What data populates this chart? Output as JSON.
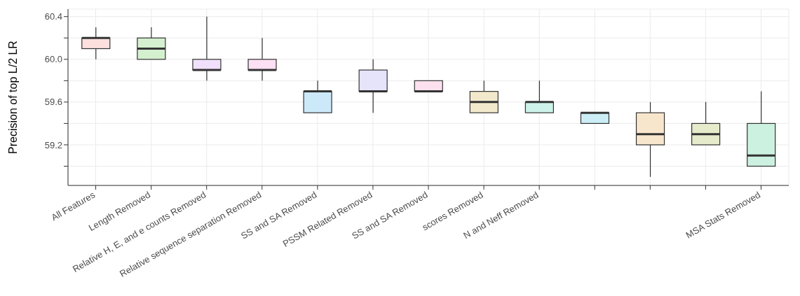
{
  "chart_data": {
    "type": "box",
    "ylabel": "Precision of top L/2 LR",
    "categories": [
      "All Features",
      "Length Removed",
      "Relative H, E, and e counts Removed",
      "Relative sequence separation Removed",
      "SS and SA Removed",
      "PSSM Related Removed",
      "SS and SA Removed",
      "scores Removed",
      "N and Neff Removed",
      null,
      null,
      null,
      "MSA Stats Removed"
    ],
    "boxes": [
      {
        "low": 60.0,
        "q1": 60.1,
        "median": 60.2,
        "q3": 60.2,
        "high": 60.3
      },
      {
        "low": 60.0,
        "q1": 60.0,
        "median": 60.1,
        "q3": 60.2,
        "high": 60.3
      },
      {
        "low": 59.8,
        "q1": 59.9,
        "median": 59.9,
        "q3": 60.0,
        "high": 60.4
      },
      {
        "low": 59.8,
        "q1": 59.9,
        "median": 59.9,
        "q3": 60.0,
        "high": 60.2
      },
      {
        "low": 59.5,
        "q1": 59.5,
        "median": 59.7,
        "q3": 59.7,
        "high": 59.8
      },
      {
        "low": 59.5,
        "q1": 59.7,
        "median": 59.7,
        "q3": 59.9,
        "high": 60.0
      },
      {
        "low": 59.7,
        "q1": 59.7,
        "median": 59.7,
        "q3": 59.8,
        "high": 59.8
      },
      {
        "low": 59.5,
        "q1": 59.5,
        "median": 59.6,
        "q3": 59.7,
        "high": 59.8
      },
      {
        "low": 59.5,
        "q1": 59.5,
        "median": 59.6,
        "q3": 59.6,
        "high": 59.8
      },
      {
        "low": 59.4,
        "q1": 59.4,
        "median": 59.5,
        "q3": 59.5,
        "high": 59.5
      },
      {
        "low": 58.9,
        "q1": 59.2,
        "median": 59.3,
        "q3": 59.5,
        "high": 59.6
      },
      {
        "low": 59.2,
        "q1": 59.2,
        "median": 59.3,
        "q3": 59.4,
        "high": 59.6
      },
      {
        "low": 59.0,
        "q1": 59.0,
        "median": 59.1,
        "q3": 59.4,
        "high": 59.7
      }
    ],
    "colors": [
      "#fde0dd",
      "#d4f0cf",
      "#f0e0fb",
      "#fde0f3",
      "#cce9fa",
      "#e5e4fb",
      "#fde0ee",
      "#f2e9cc",
      "#cdf2ea",
      "#ccedf5",
      "#f8e6cc",
      "#e6ebcc",
      "#ccf1e0"
    ],
    "ylim": [
      58.82,
      60.47
    ],
    "yticks": [
      59.2,
      59.6,
      {
        "value": 60.0,
        "label": "60.0"
      },
      60.4,
      {
        "value": 59.0,
        "label": null
      },
      {
        "value": 59.4,
        "label": null
      },
      {
        "value": 59.8,
        "label": null
      },
      {
        "value": 60.2,
        "label": null
      }
    ],
    "grid": true
  }
}
